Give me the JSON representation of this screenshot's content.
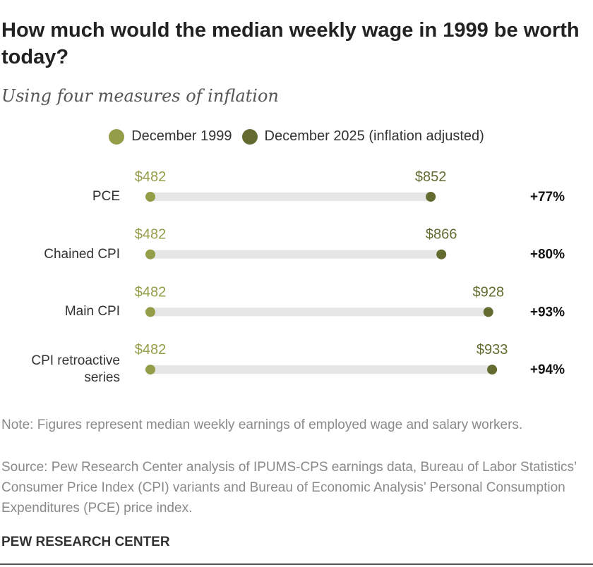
{
  "chart_data": {
    "type": "dumbbell",
    "title": "How much would the median weekly wage in 1999 be worth today?",
    "subtitle": "Using four measures of inflation",
    "categories": [
      "PCE",
      "Chained CPI",
      "Main CPI",
      "CPI retroactive series"
    ],
    "series": [
      {
        "name": "December 1999",
        "color": "#949d48",
        "values": [
          482,
          482,
          482,
          482
        ],
        "value_labels": [
          "$482",
          "$482",
          "$482",
          "$482"
        ]
      },
      {
        "name": "December 2025 (inflation adjusted)",
        "color": "#646b31",
        "values": [
          852,
          866,
          928,
          933
        ],
        "value_labels": [
          "$852",
          "$866",
          "$928",
          "$933"
        ]
      }
    ],
    "change_labels": [
      "+77%",
      "+80%",
      "+93%",
      "+94%"
    ],
    "xlim": [
      400,
      1000
    ],
    "note": "Note: Figures represent median weekly earnings of employed wage and salary workers.",
    "source": "Source: Pew Research Center analysis of IPUMS-CPS earnings data, Bureau of Labor Statistics’ Consumer Price Index (CPI) variants and Bureau of Economic Analysis’ Personal Consumption Expenditures (PCE) price index.",
    "footer": "PEW RESEARCH CENTER"
  }
}
